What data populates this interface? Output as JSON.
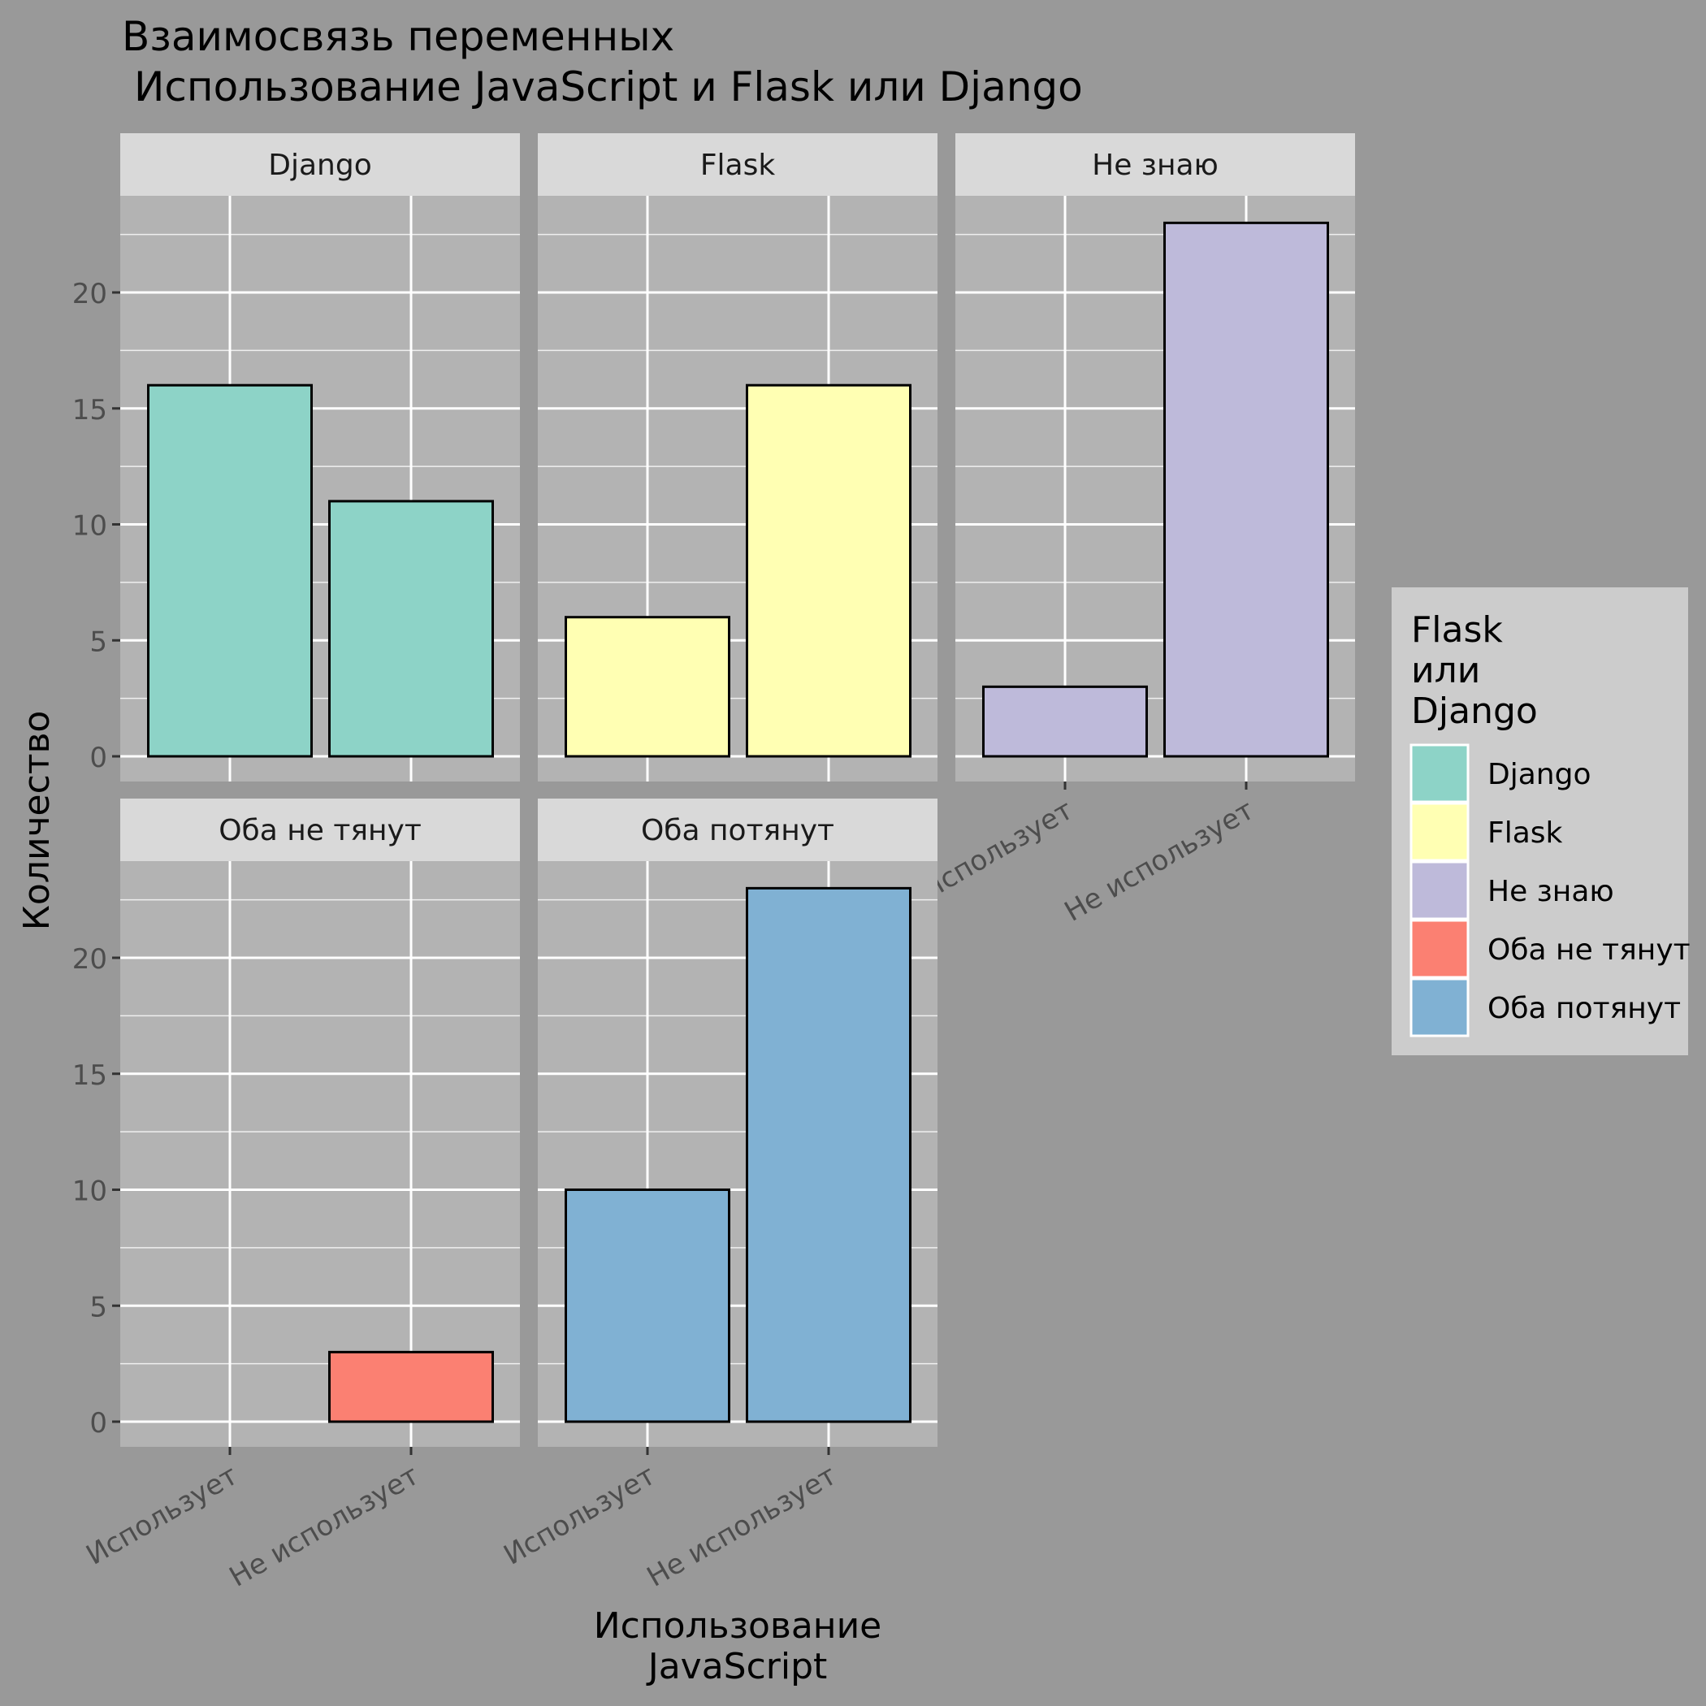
{
  "chart_data": {
    "type": "bar",
    "title_line1": "Взаимосвязь переменных",
    "title_line2": "Использование JavaScript и Flask или Django",
    "xlabel_line1": "Использование",
    "xlabel_line2": "JavaScript",
    "ylabel": "Количество",
    "categories": [
      "Использует",
      "Не использует"
    ],
    "ylim": [
      0,
      24
    ],
    "yticks": [
      0,
      5,
      10,
      15,
      20
    ],
    "grid": true,
    "legend": {
      "title_lines": [
        "Flask",
        "или",
        "Django"
      ],
      "placement": "right"
    },
    "facets": [
      {
        "name": "Django",
        "color": "#8DD3C7",
        "values": [
          16,
          11
        ]
      },
      {
        "name": "Flask",
        "color": "#FFFFB3",
        "values": [
          6,
          16
        ]
      },
      {
        "name": "Не знаю",
        "color": "#BEBADA",
        "values": [
          3,
          23
        ]
      },
      {
        "name": "Оба не тянут",
        "color": "#FB8072",
        "values": [
          0,
          3
        ]
      },
      {
        "name": "Оба потянут",
        "color": "#80B1D3",
        "values": [
          10,
          23
        ]
      }
    ]
  }
}
